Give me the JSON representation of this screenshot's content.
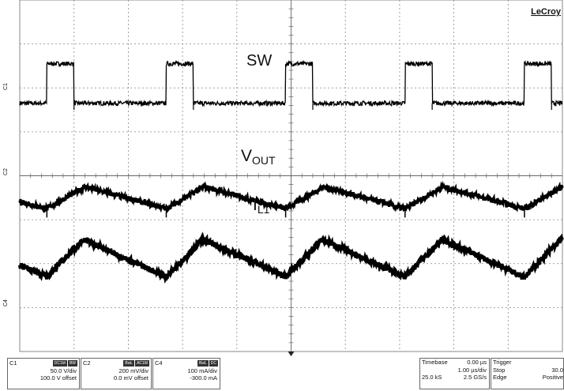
{
  "brand": "LeCroy",
  "chart_data": {
    "type": "line",
    "title": "",
    "xlabel": "",
    "ylabel": "",
    "grid": true,
    "divisions": {
      "x": 10,
      "y": 8
    },
    "timebase_per_div_us": 1.0,
    "switching_period_us": 2.2,
    "switch_on_time_us": 0.5,
    "first_rising_edge_us": 0.5,
    "series": [
      {
        "name": "SW",
        "channel": "C1",
        "baseline_div": 5.65,
        "high_div": 6.55,
        "noise_div": 0.05
      },
      {
        "name": "VOUT",
        "channel": "C2",
        "low_div": 3.25,
        "peak_div": 3.75,
        "noise_div": 0.06
      },
      {
        "name": "IL1",
        "channel": "C4",
        "low_div": 1.7,
        "peak_div": 2.55,
        "noise_div": 0.06
      }
    ],
    "labels": [
      {
        "text": "SW",
        "series": "SW"
      },
      {
        "text": "V",
        "sub": "OUT",
        "series": "VOUT"
      },
      {
        "text": "I",
        "sub": "L1",
        "series": "IL1"
      }
    ]
  },
  "channels": [
    {
      "id": "C1",
      "tags": [
        "DC1M",
        "BW"
      ],
      "scale": "50.0 V/div",
      "offset": "100.0 V offset"
    },
    {
      "id": "C2",
      "tags": [
        "BwL",
        "AC1M"
      ],
      "scale": "200 mV/div",
      "offset": "0.0 mV offset"
    },
    {
      "id": "C4",
      "tags": [
        "BwL",
        "DC"
      ],
      "scale": "100 mA/div",
      "offset": "-300.0 mA"
    }
  ],
  "markers": {
    "c1": "C1",
    "c2": "C2",
    "c4": "C4"
  },
  "timebase": {
    "label": "Timebase",
    "delay": "0.00 µs",
    "per_div": "1.00 µs/div",
    "samples": "25.0 kS",
    "rate": "2.5 GS/s"
  },
  "trigger": {
    "label": "Trigger",
    "mode": "Stop",
    "level": "30.0",
    "type": "Edge",
    "slope": "Positive"
  }
}
